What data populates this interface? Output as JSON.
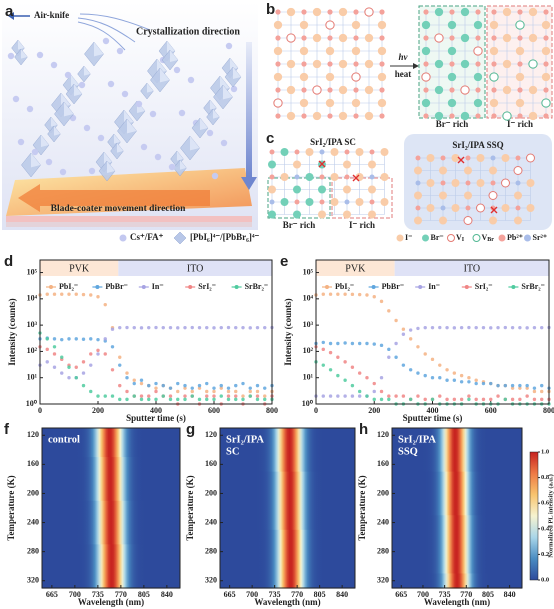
{
  "diagrams": {
    "a": {
      "label": "a",
      "air_knife": "Air-knife",
      "direction": "Crystallization direction",
      "coater": "Blade-coater movement direction",
      "legend": [
        "Cs⁺/FA⁺",
        "[PbI₆]⁴⁻/[PbBr₆]⁴⁻"
      ]
    },
    "b": {
      "label": "b",
      "light": "hv",
      "heat": "heat",
      "br_rich": "Br⁻ rich",
      "i_rich": "I⁻ rich"
    },
    "c": {
      "label": "c",
      "sc_title": "SrI₂/IPA SC",
      "ssq_title": "SrI₂/IPA SSQ",
      "br_rich": "Br⁻ rich",
      "i_rich": "I⁻ rich",
      "legend": [
        {
          "text": "I⁻"
        },
        {
          "text": "Br⁻"
        },
        {
          "text": "V",
          "sub": "I"
        },
        {
          "text": "V",
          "sub": "Br"
        },
        {
          "text": "Pb²⁺"
        },
        {
          "text": "Sr²⁺"
        }
      ]
    }
  },
  "chart_data": [
    {
      "type": "scatter",
      "label": "d",
      "xlabel": "Sputter time (s)",
      "ylabel": "Intensity (counts)",
      "log_y": true,
      "xlim": [
        0,
        800
      ],
      "xticks": [
        0,
        200,
        400,
        600,
        800
      ],
      "ylim": [
        1,
        300000
      ],
      "yticks": [
        {
          "value": 1,
          "label": "10⁰"
        },
        {
          "value": 10,
          "label": "10¹"
        },
        {
          "value": 100,
          "label": "10²"
        },
        {
          "value": 1000,
          "label": "10³"
        },
        {
          "value": 10000,
          "label": "10⁴"
        },
        {
          "value": 100000,
          "label": "10⁵"
        }
      ],
      "regions": [
        {
          "label": "PVK",
          "range": [
            0,
            270
          ],
          "color": "#fde7d6"
        },
        {
          "label": "ITO",
          "range": [
            270,
            800
          ],
          "color": "#dfe2f6"
        }
      ],
      "x": [
        0,
        25,
        50,
        75,
        100,
        125,
        150,
        175,
        200,
        225,
        250,
        275,
        300,
        325,
        350,
        375,
        400,
        425,
        450,
        475,
        500,
        525,
        550,
        575,
        600,
        625,
        650,
        675,
        700,
        725,
        750,
        775,
        800
      ],
      "series": [
        {
          "name": "PbI₂⁻",
          "color": "#f4b283",
          "values": [
            14000,
            15000,
            15000,
            15000,
            15000,
            15000,
            14500,
            14000,
            12000,
            6000,
            800,
            60,
            15,
            8,
            6,
            5,
            4,
            5,
            4,
            3,
            4,
            3,
            4,
            3,
            3,
            4,
            3,
            3,
            2,
            3,
            3,
            2,
            3
          ]
        },
        {
          "name": "PbBr⁻",
          "color": "#5fa6de",
          "values": [
            300,
            320,
            300,
            280,
            300,
            300,
            290,
            300,
            280,
            250,
            150,
            30,
            10,
            6,
            8,
            5,
            6,
            5,
            4,
            6,
            5,
            4,
            5,
            6,
            4,
            5,
            4,
            5,
            6,
            4,
            5,
            4,
            5
          ]
        },
        {
          "name": "In⁻",
          "color": "#a7a3e3",
          "values": [
            30,
            40,
            25,
            15,
            10,
            10,
            15,
            30,
            80,
            300,
            700,
            800,
            810,
            800,
            790,
            800,
            810,
            800,
            800,
            790,
            800,
            810,
            800,
            800,
            790,
            800,
            810,
            800,
            800,
            790,
            800,
            800,
            810
          ]
        },
        {
          "name": "SrI₂⁻",
          "color": "#f08585",
          "values": [
            150,
            120,
            80,
            50,
            30,
            25,
            40,
            80,
            110,
            80,
            20,
            5,
            3,
            2,
            2,
            2,
            3,
            2,
            2,
            1,
            2,
            2,
            1,
            2,
            2,
            1,
            2,
            2,
            1,
            2,
            2,
            1,
            2
          ]
        },
        {
          "name": "SrBr₂⁻",
          "color": "#4fcb9f",
          "values": [
            500,
            300,
            150,
            60,
            25,
            10,
            5,
            3,
            2,
            2,
            2,
            1.5,
            1.5,
            2,
            1.5,
            1.5,
            1.5,
            2,
            1.5,
            1.5,
            1.5,
            2,
            1.5,
            1.5,
            1.5,
            2,
            1.5,
            1.5,
            1.5,
            2,
            1.5,
            1.5,
            1.5
          ]
        }
      ]
    },
    {
      "type": "scatter",
      "label": "e",
      "xlabel": "Sputter time (s)",
      "ylabel": "Intensity (counts)",
      "log_y": true,
      "xlim": [
        0,
        800
      ],
      "xticks": [
        0,
        200,
        400,
        600,
        800
      ],
      "ylim": [
        1,
        300000
      ],
      "yticks": [
        {
          "value": 1,
          "label": "10⁰"
        },
        {
          "value": 10,
          "label": "10¹"
        },
        {
          "value": 100,
          "label": "10²"
        },
        {
          "value": 1000,
          "label": "10³"
        },
        {
          "value": 10000,
          "label": "10⁴"
        },
        {
          "value": 100000,
          "label": "10⁵"
        }
      ],
      "regions": [
        {
          "label": "PVK",
          "range": [
            0,
            270
          ],
          "color": "#fde7d6"
        },
        {
          "label": "ITO",
          "range": [
            270,
            800
          ],
          "color": "#dfe2f6"
        }
      ],
      "x": [
        0,
        25,
        50,
        75,
        100,
        125,
        150,
        175,
        200,
        225,
        250,
        275,
        300,
        325,
        350,
        375,
        400,
        425,
        450,
        475,
        500,
        525,
        550,
        575,
        600,
        625,
        650,
        675,
        700,
        725,
        750,
        775,
        800
      ],
      "series": [
        {
          "name": "PbI₂⁻",
          "color": "#f4b283",
          "values": [
            14000,
            15000,
            15000,
            15000,
            15000,
            14800,
            14500,
            14000,
            12000,
            8000,
            3500,
            1500,
            700,
            300,
            150,
            80,
            50,
            30,
            20,
            15,
            12,
            10,
            8,
            7,
            6,
            5,
            5,
            4,
            4,
            4,
            3,
            3,
            3
          ]
        },
        {
          "name": "PbBr⁻",
          "color": "#5fa6de",
          "values": [
            200,
            220,
            200,
            200,
            210,
            200,
            200,
            200,
            190,
            170,
            120,
            60,
            30,
            20,
            15,
            12,
            10,
            10,
            8,
            8,
            7,
            7,
            6,
            6,
            6,
            5,
            5,
            5,
            5,
            5,
            4,
            5,
            4
          ]
        },
        {
          "name": "In⁻",
          "color": "#a7a3e3",
          "values": [
            2,
            2,
            2,
            2,
            2,
            2,
            2,
            2,
            3,
            10,
            60,
            200,
            450,
            650,
            750,
            800,
            800,
            810,
            800,
            790,
            800,
            810,
            800,
            800,
            790,
            800,
            810,
            800,
            800,
            790,
            800,
            800,
            810
          ]
        },
        {
          "name": "SrI₂⁻",
          "color": "#f08585",
          "values": [
            150,
            120,
            90,
            60,
            40,
            25,
            15,
            10,
            6,
            3,
            2,
            2,
            2,
            1.5,
            2,
            1.5,
            1.5,
            2,
            1.5,
            1.5,
            1.5,
            2,
            1.5,
            1.5,
            1.5,
            2,
            1.5,
            1.5,
            1.5,
            2,
            1.5,
            1.5,
            1.5
          ]
        },
        {
          "name": "SrBr₂⁻",
          "color": "#4fcb9f",
          "values": [
            40,
            30,
            20,
            12,
            8,
            5,
            3,
            2,
            1.5,
            1.5,
            1.5,
            1,
            1,
            1.5,
            1,
            1,
            1.5,
            1,
            1,
            1,
            1,
            1.5,
            1,
            1,
            1,
            1,
            1.5,
            1,
            1,
            1,
            1,
            1,
            1
          ]
        }
      ]
    },
    {
      "type": "heatmap",
      "label": "f",
      "annotation": [
        "control"
      ],
      "xlabel": "Wavelength (nm)",
      "ylabel": "Temperature (K)",
      "xlim": [
        650,
        860
      ],
      "xticks": [
        665,
        700,
        735,
        770,
        805,
        840
      ],
      "ylim": [
        110,
        330
      ],
      "yticks": [
        120,
        160,
        200,
        240,
        280,
        320
      ],
      "y_inverted": true,
      "temperatures": [
        120,
        140,
        160,
        180,
        200,
        220,
        240,
        260,
        280,
        300,
        320
      ],
      "peak_wavelength": [
        753,
        753,
        754,
        754,
        754,
        755,
        755,
        755,
        756,
        756,
        756
      ],
      "fwhm": 32,
      "colormap": [
        "#2d4a9c",
        "#4a8cc2",
        "#a9d6e9",
        "#f6f3d0",
        "#f8c46e",
        "#ee7a45",
        "#c6211f"
      ]
    },
    {
      "type": "heatmap",
      "label": "g",
      "annotation": [
        "SrI₂/IPA",
        "SC"
      ],
      "xlabel": "Wavelength (nm)",
      "ylabel": "Temperature (K)",
      "xlim": [
        650,
        860
      ],
      "xticks": [
        665,
        700,
        735,
        770,
        805,
        840
      ],
      "ylim": [
        110,
        330
      ],
      "yticks": [
        120,
        160,
        200,
        240,
        280,
        320
      ],
      "y_inverted": true,
      "temperatures": [
        120,
        140,
        160,
        180,
        200,
        220,
        240,
        260,
        280,
        300,
        320
      ],
      "peak_wavelength": [
        758,
        758,
        758,
        759,
        759,
        759,
        759,
        760,
        760,
        760,
        760
      ],
      "fwhm": 32,
      "colormap": [
        "#2d4a9c",
        "#4a8cc2",
        "#a9d6e9",
        "#f6f3d0",
        "#f8c46e",
        "#ee7a45",
        "#c6211f"
      ]
    },
    {
      "type": "heatmap",
      "label": "h",
      "annotation": [
        "SrI₂/IPA",
        "SSQ"
      ],
      "xlabel": "Wavelength (nm)",
      "ylabel": "Temperature (K)",
      "xlim": [
        650,
        860
      ],
      "xticks": [
        665,
        700,
        735,
        770,
        805,
        840
      ],
      "ylim": [
        110,
        330
      ],
      "yticks": [
        120,
        160,
        200,
        240,
        280,
        320
      ],
      "y_inverted": true,
      "temperatures": [
        120,
        140,
        160,
        180,
        200,
        220,
        240,
        260,
        280,
        300,
        320
      ],
      "peak_wavelength": [
        752,
        752,
        752,
        753,
        753,
        753,
        754,
        754,
        754,
        754,
        755
      ],
      "fwhm": 32,
      "colormap": [
        "#2d4a9c",
        "#4a8cc2",
        "#a9d6e9",
        "#f6f3d0",
        "#f8c46e",
        "#ee7a45",
        "#c6211f"
      ],
      "colorbar": {
        "label": "Normalized PL intensity (a.u.)",
        "lim": [
          0,
          1
        ],
        "ticks": [
          {
            "value": 0,
            "label": "0.0"
          },
          0.2,
          0.4,
          0.6,
          0.8,
          {
            "value": 1,
            "label": "1.0"
          }
        ]
      }
    }
  ]
}
